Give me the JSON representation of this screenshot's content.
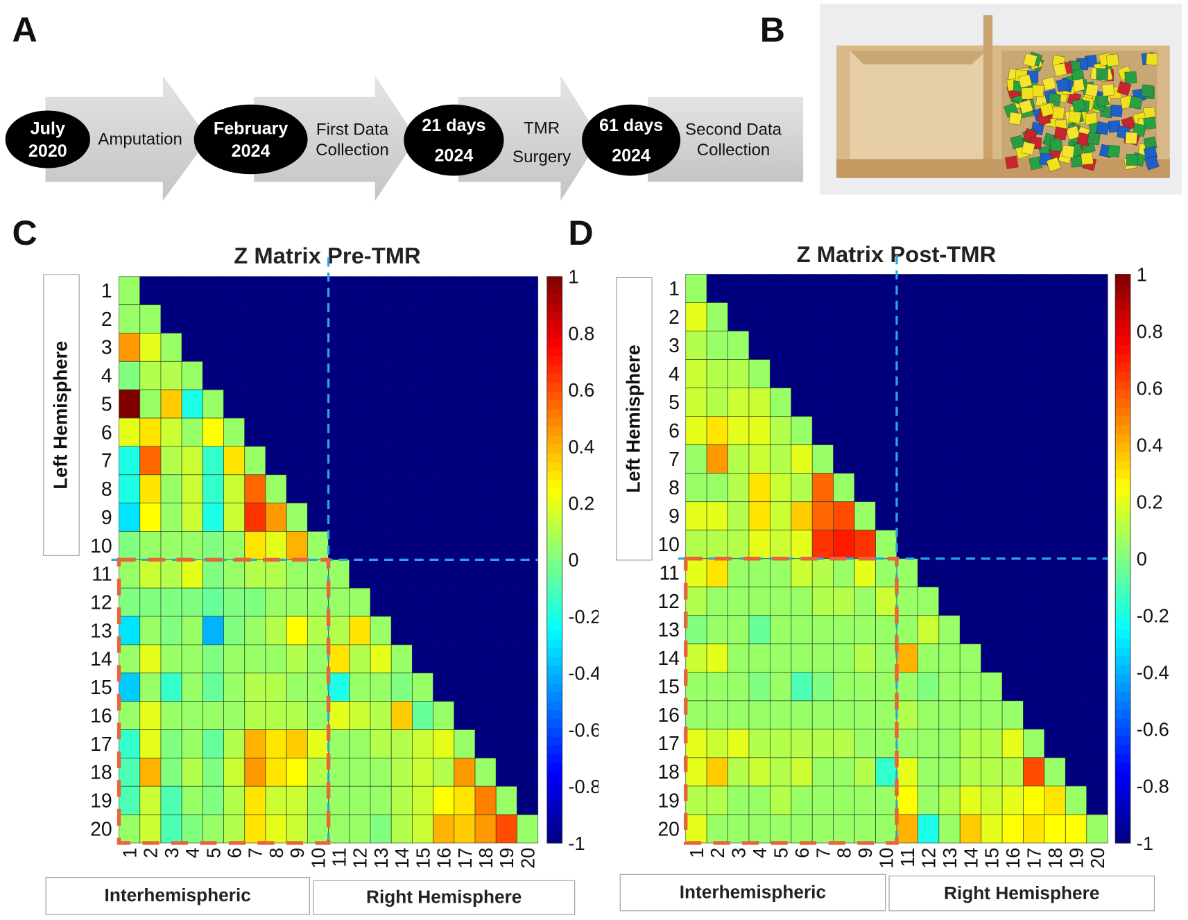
{
  "panels": {
    "a": "A",
    "b": "B",
    "c": "C",
    "d": "D"
  },
  "timeline": {
    "milestones": [
      {
        "line1": "July",
        "line2": "2020"
      },
      {
        "line1": "February",
        "line2": "2024"
      },
      {
        "line1": "21 days",
        "line2": "2024"
      },
      {
        "line1": "61 days",
        "line2": "2024"
      }
    ],
    "steps": [
      {
        "line1": "Amputation",
        "line2": ""
      },
      {
        "line1": "First Data",
        "line2": "Collection"
      },
      {
        "line1": "TMR",
        "line2": "Surgery"
      },
      {
        "line1": "Second Data",
        "line2": "Collection"
      }
    ]
  },
  "chart_data": [
    {
      "type": "heatmap",
      "title": "Z Matrix Pre-TMR",
      "row_labels": [
        "1",
        "2",
        "3",
        "4",
        "5",
        "6",
        "7",
        "8",
        "9",
        "10",
        "11",
        "12",
        "13",
        "14",
        "15",
        "16",
        "17",
        "18",
        "19",
        "20"
      ],
      "col_labels": [
        "1",
        "2",
        "3",
        "4",
        "5",
        "6",
        "7",
        "8",
        "9",
        "10",
        "11",
        "12",
        "13",
        "14",
        "15",
        "16",
        "17",
        "18",
        "19",
        "20"
      ],
      "ylabel_group": "Left Hemisphere",
      "xlabel_groups": [
        "Interhemispheric",
        "Right Hemisphere"
      ],
      "colorbar": {
        "range": [
          -1,
          1
        ],
        "ticks": [
          "1",
          "0.8",
          "0.6",
          "0.4",
          "0.2",
          "0",
          "-0.2",
          "-0.4",
          "-0.6",
          "-0.8",
          "-1"
        ],
        "colormap": "jet"
      },
      "masked_value": -1,
      "values": [
        [
          0.05
        ],
        [
          0.05,
          0.05
        ],
        [
          0.45,
          0.2,
          0.05
        ],
        [
          0,
          0.1,
          0.1,
          0.05
        ],
        [
          1.0,
          0.05,
          0.35,
          -0.2,
          0.05
        ],
        [
          0.2,
          0.3,
          0.15,
          0.05,
          0.25,
          0.05
        ],
        [
          -0.2,
          0.55,
          0.1,
          0.15,
          -0.15,
          0.3,
          0.05
        ],
        [
          -0.2,
          0.3,
          0.05,
          0.15,
          -0.15,
          0.15,
          0.55,
          0.05
        ],
        [
          -0.3,
          0.25,
          0.05,
          0.15,
          -0.2,
          0.15,
          0.65,
          0.45,
          0.05
        ],
        [
          0,
          0.05,
          0.05,
          0.05,
          0,
          0.05,
          0.3,
          0.2,
          0.4,
          0.05
        ],
        [
          0.05,
          0.15,
          0.1,
          0.2,
          0,
          0.05,
          0.1,
          0.1,
          0.05,
          0.05,
          0.05
        ],
        [
          0,
          0,
          0,
          0,
          -0.05,
          0,
          0,
          0.05,
          0.05,
          0.05,
          0.05,
          0.05
        ],
        [
          -0.3,
          0.05,
          0,
          0.05,
          -0.4,
          0,
          0.05,
          0.1,
          0.25,
          0.1,
          0.1,
          0.3,
          0.05
        ],
        [
          0.05,
          0.2,
          0.05,
          0.05,
          0,
          0.05,
          0.05,
          0.05,
          0.1,
          0.05,
          0.3,
          0.1,
          0.2,
          0.05
        ],
        [
          -0.35,
          0.05,
          -0.15,
          0.05,
          -0.05,
          0.05,
          0.1,
          0.1,
          0.05,
          0.05,
          -0.2,
          0.05,
          0.05,
          0,
          0.05
        ],
        [
          0.05,
          0.2,
          0.05,
          0.05,
          0.05,
          0.05,
          0.1,
          0.1,
          0.1,
          0.05,
          0.2,
          0.15,
          0.1,
          0.35,
          -0.05,
          0.05
        ],
        [
          -0.15,
          0.2,
          0,
          0.05,
          -0.05,
          0.1,
          0.4,
          0.3,
          0.35,
          0.2,
          0.05,
          0.05,
          0.1,
          0.1,
          0.15,
          0.2,
          0.05
        ],
        [
          -0.1,
          0.4,
          0,
          0.1,
          0,
          0.15,
          0.45,
          0.3,
          0.25,
          0.1,
          0.05,
          0.05,
          0.05,
          0.1,
          0.15,
          0.1,
          0.45,
          0.05
        ],
        [
          -0.1,
          0.15,
          -0.1,
          0.05,
          0,
          0.1,
          0.3,
          0.15,
          0.15,
          0.05,
          0.05,
          0.05,
          0.05,
          0.1,
          0.15,
          0.25,
          0.3,
          0.5,
          0.05
        ],
        [
          0.05,
          0.15,
          -0.1,
          0,
          0.05,
          0.1,
          0.3,
          0.2,
          0.15,
          0.05,
          0.05,
          0.05,
          0,
          0.1,
          0.15,
          0.4,
          0.35,
          0.45,
          0.6,
          0.05
        ]
      ]
    },
    {
      "type": "heatmap",
      "title": "Z Matrix Post-TMR",
      "row_labels": [
        "1",
        "2",
        "3",
        "4",
        "5",
        "6",
        "7",
        "8",
        "9",
        "10",
        "11",
        "12",
        "13",
        "14",
        "15",
        "16",
        "17",
        "18",
        "19",
        "20"
      ],
      "col_labels": [
        "1",
        "2",
        "3",
        "4",
        "5",
        "6",
        "7",
        "8",
        "9",
        "10",
        "11",
        "12",
        "13",
        "14",
        "15",
        "16",
        "17",
        "18",
        "19",
        "20"
      ],
      "ylabel_group": "Left Hemisphere",
      "xlabel_groups": [
        "Interhemispheric",
        "Right Hemisphere"
      ],
      "colorbar": {
        "range": [
          -1,
          1
        ],
        "ticks": [
          "1",
          "0.8",
          "0.6",
          "0.4",
          "0.2",
          "0",
          "-0.2",
          "-0.4",
          "-0.6",
          "-0.8",
          "-1"
        ],
        "colormap": "jet"
      },
      "masked_value": -1,
      "values": [
        [
          0.05
        ],
        [
          0.2,
          0.05
        ],
        [
          0.1,
          0.05,
          0.05
        ],
        [
          0.15,
          0.1,
          0.1,
          0.05
        ],
        [
          0.15,
          0.1,
          0.15,
          0.15,
          0.05
        ],
        [
          0.2,
          0.3,
          0.2,
          0.2,
          0.1,
          0.05
        ],
        [
          0.05,
          0.45,
          0.1,
          0.15,
          0.1,
          0.2,
          0.05
        ],
        [
          0.05,
          0.05,
          0.1,
          0.3,
          0.15,
          0.1,
          0.55,
          0.05
        ],
        [
          0.2,
          0.2,
          0.1,
          0.3,
          0.15,
          0.35,
          0.55,
          0.6,
          0.05
        ],
        [
          0.1,
          0.1,
          0.1,
          0.2,
          0.15,
          0.2,
          0.65,
          0.7,
          0.65,
          0.05
        ],
        [
          0.2,
          0.3,
          0.05,
          0.05,
          0.05,
          0.15,
          0.1,
          0.05,
          0.2,
          0.05,
          0.05
        ],
        [
          0.1,
          0.05,
          0.05,
          0.05,
          0.05,
          0.05,
          0.1,
          0.1,
          0.05,
          0.15,
          0.05,
          0.05
        ],
        [
          0,
          0.05,
          0.05,
          -0.05,
          0.05,
          0.05,
          0.05,
          0.05,
          0.05,
          0.05,
          0.05,
          0.15,
          0.05
        ],
        [
          0.15,
          0.2,
          0.05,
          0.05,
          0.05,
          0.05,
          0.05,
          0.05,
          0.1,
          0.05,
          0.4,
          0.05,
          0.05,
          0.05
        ],
        [
          0.05,
          0.05,
          0.05,
          0,
          0.05,
          -0.1,
          0,
          0.05,
          0.05,
          0.05,
          0.05,
          0,
          0.05,
          0.05,
          0.05
        ],
        [
          0.05,
          0.05,
          0.05,
          0.05,
          0.05,
          0.05,
          0.05,
          0.05,
          0.05,
          0.05,
          0.1,
          0.05,
          0.05,
          0.05,
          0.05,
          0.05
        ],
        [
          0.2,
          0.15,
          0.2,
          0.1,
          0.1,
          0.1,
          0.1,
          0.1,
          0.05,
          0.05,
          0.05,
          0.05,
          0.05,
          0.1,
          0.1,
          0.2,
          0.05
        ],
        [
          0.2,
          0.35,
          0.1,
          0.15,
          0.1,
          0.15,
          0.05,
          0.05,
          0.1,
          -0.15,
          0.2,
          0.05,
          0.05,
          0.1,
          0.1,
          0.1,
          0.6,
          0.05
        ],
        [
          0.1,
          0.1,
          0.05,
          0.05,
          0.1,
          0.05,
          0.05,
          0.05,
          0.05,
          0.05,
          0.25,
          0.05,
          0.1,
          0.2,
          0.15,
          0.2,
          0.25,
          0.3,
          0.05
        ],
        [
          0.2,
          0.05,
          0.05,
          0.05,
          0.05,
          0.05,
          0.05,
          0.05,
          0.05,
          0.05,
          0.4,
          -0.2,
          0.05,
          0.35,
          0.2,
          0.25,
          0.3,
          0.25,
          0.25,
          0.05
        ]
      ]
    }
  ],
  "colors": {
    "mask": "#00007f",
    "divider_blue": "#2aa7de",
    "interhemispheric_orange": "#e8643a",
    "arrow_gray": "#d2d2d2"
  }
}
